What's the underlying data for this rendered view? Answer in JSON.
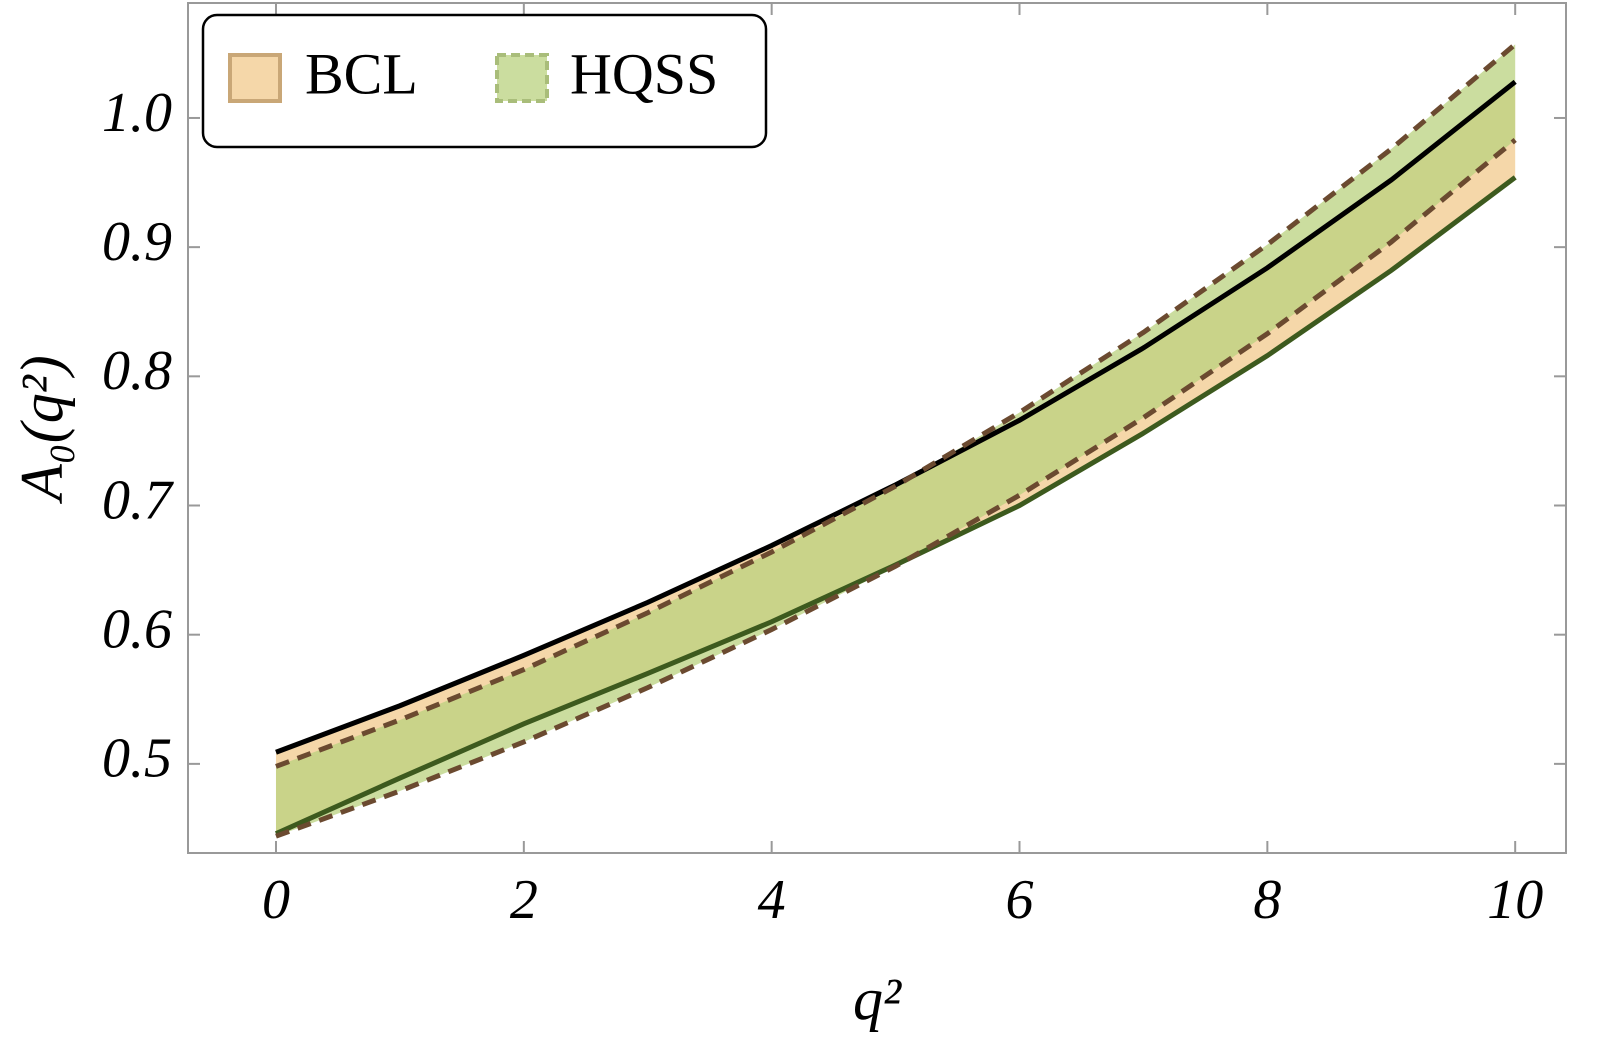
{
  "chart_data": {
    "type": "band",
    "xlabel": "q²",
    "ylabel": "A₀(q²)",
    "x": [
      0,
      1,
      2,
      3,
      4,
      5,
      6,
      7,
      8,
      9,
      10
    ],
    "series": [
      {
        "name": "BCL",
        "color": "#f2c98c",
        "upper_color": "#000000",
        "lower_color": "#3d5a1e",
        "dashed": false,
        "upper": [
          0.509,
          0.545,
          0.584,
          0.625,
          0.669,
          0.716,
          0.766,
          0.822,
          0.884,
          0.952,
          1.028
        ],
        "lower": [
          0.446,
          0.489,
          0.531,
          0.57,
          0.61,
          0.654,
          0.7,
          0.756,
          0.816,
          0.882,
          0.954
        ]
      },
      {
        "name": "HQSS",
        "color": "#b9d27f",
        "upper_color": "#6b4a30",
        "lower_color": "#6b4a30",
        "dashed": true,
        "upper": [
          0.498,
          0.534,
          0.573,
          0.617,
          0.664,
          0.715,
          0.772,
          0.834,
          0.902,
          0.976,
          1.057
        ],
        "lower": [
          0.444,
          0.479,
          0.517,
          0.559,
          0.604,
          0.653,
          0.708,
          0.768,
          0.833,
          0.904,
          0.983
        ]
      }
    ],
    "xlim": [
      -0.71,
      10.41
    ],
    "ylim": [
      0.431,
      1.089
    ],
    "xticks": [
      0,
      2,
      4,
      6,
      8,
      10
    ],
    "yticks": [
      0.5,
      0.6,
      0.7,
      0.8,
      0.9,
      {
        "value": 1,
        "label": "1.0"
      }
    ],
    "legend": "top-left"
  }
}
